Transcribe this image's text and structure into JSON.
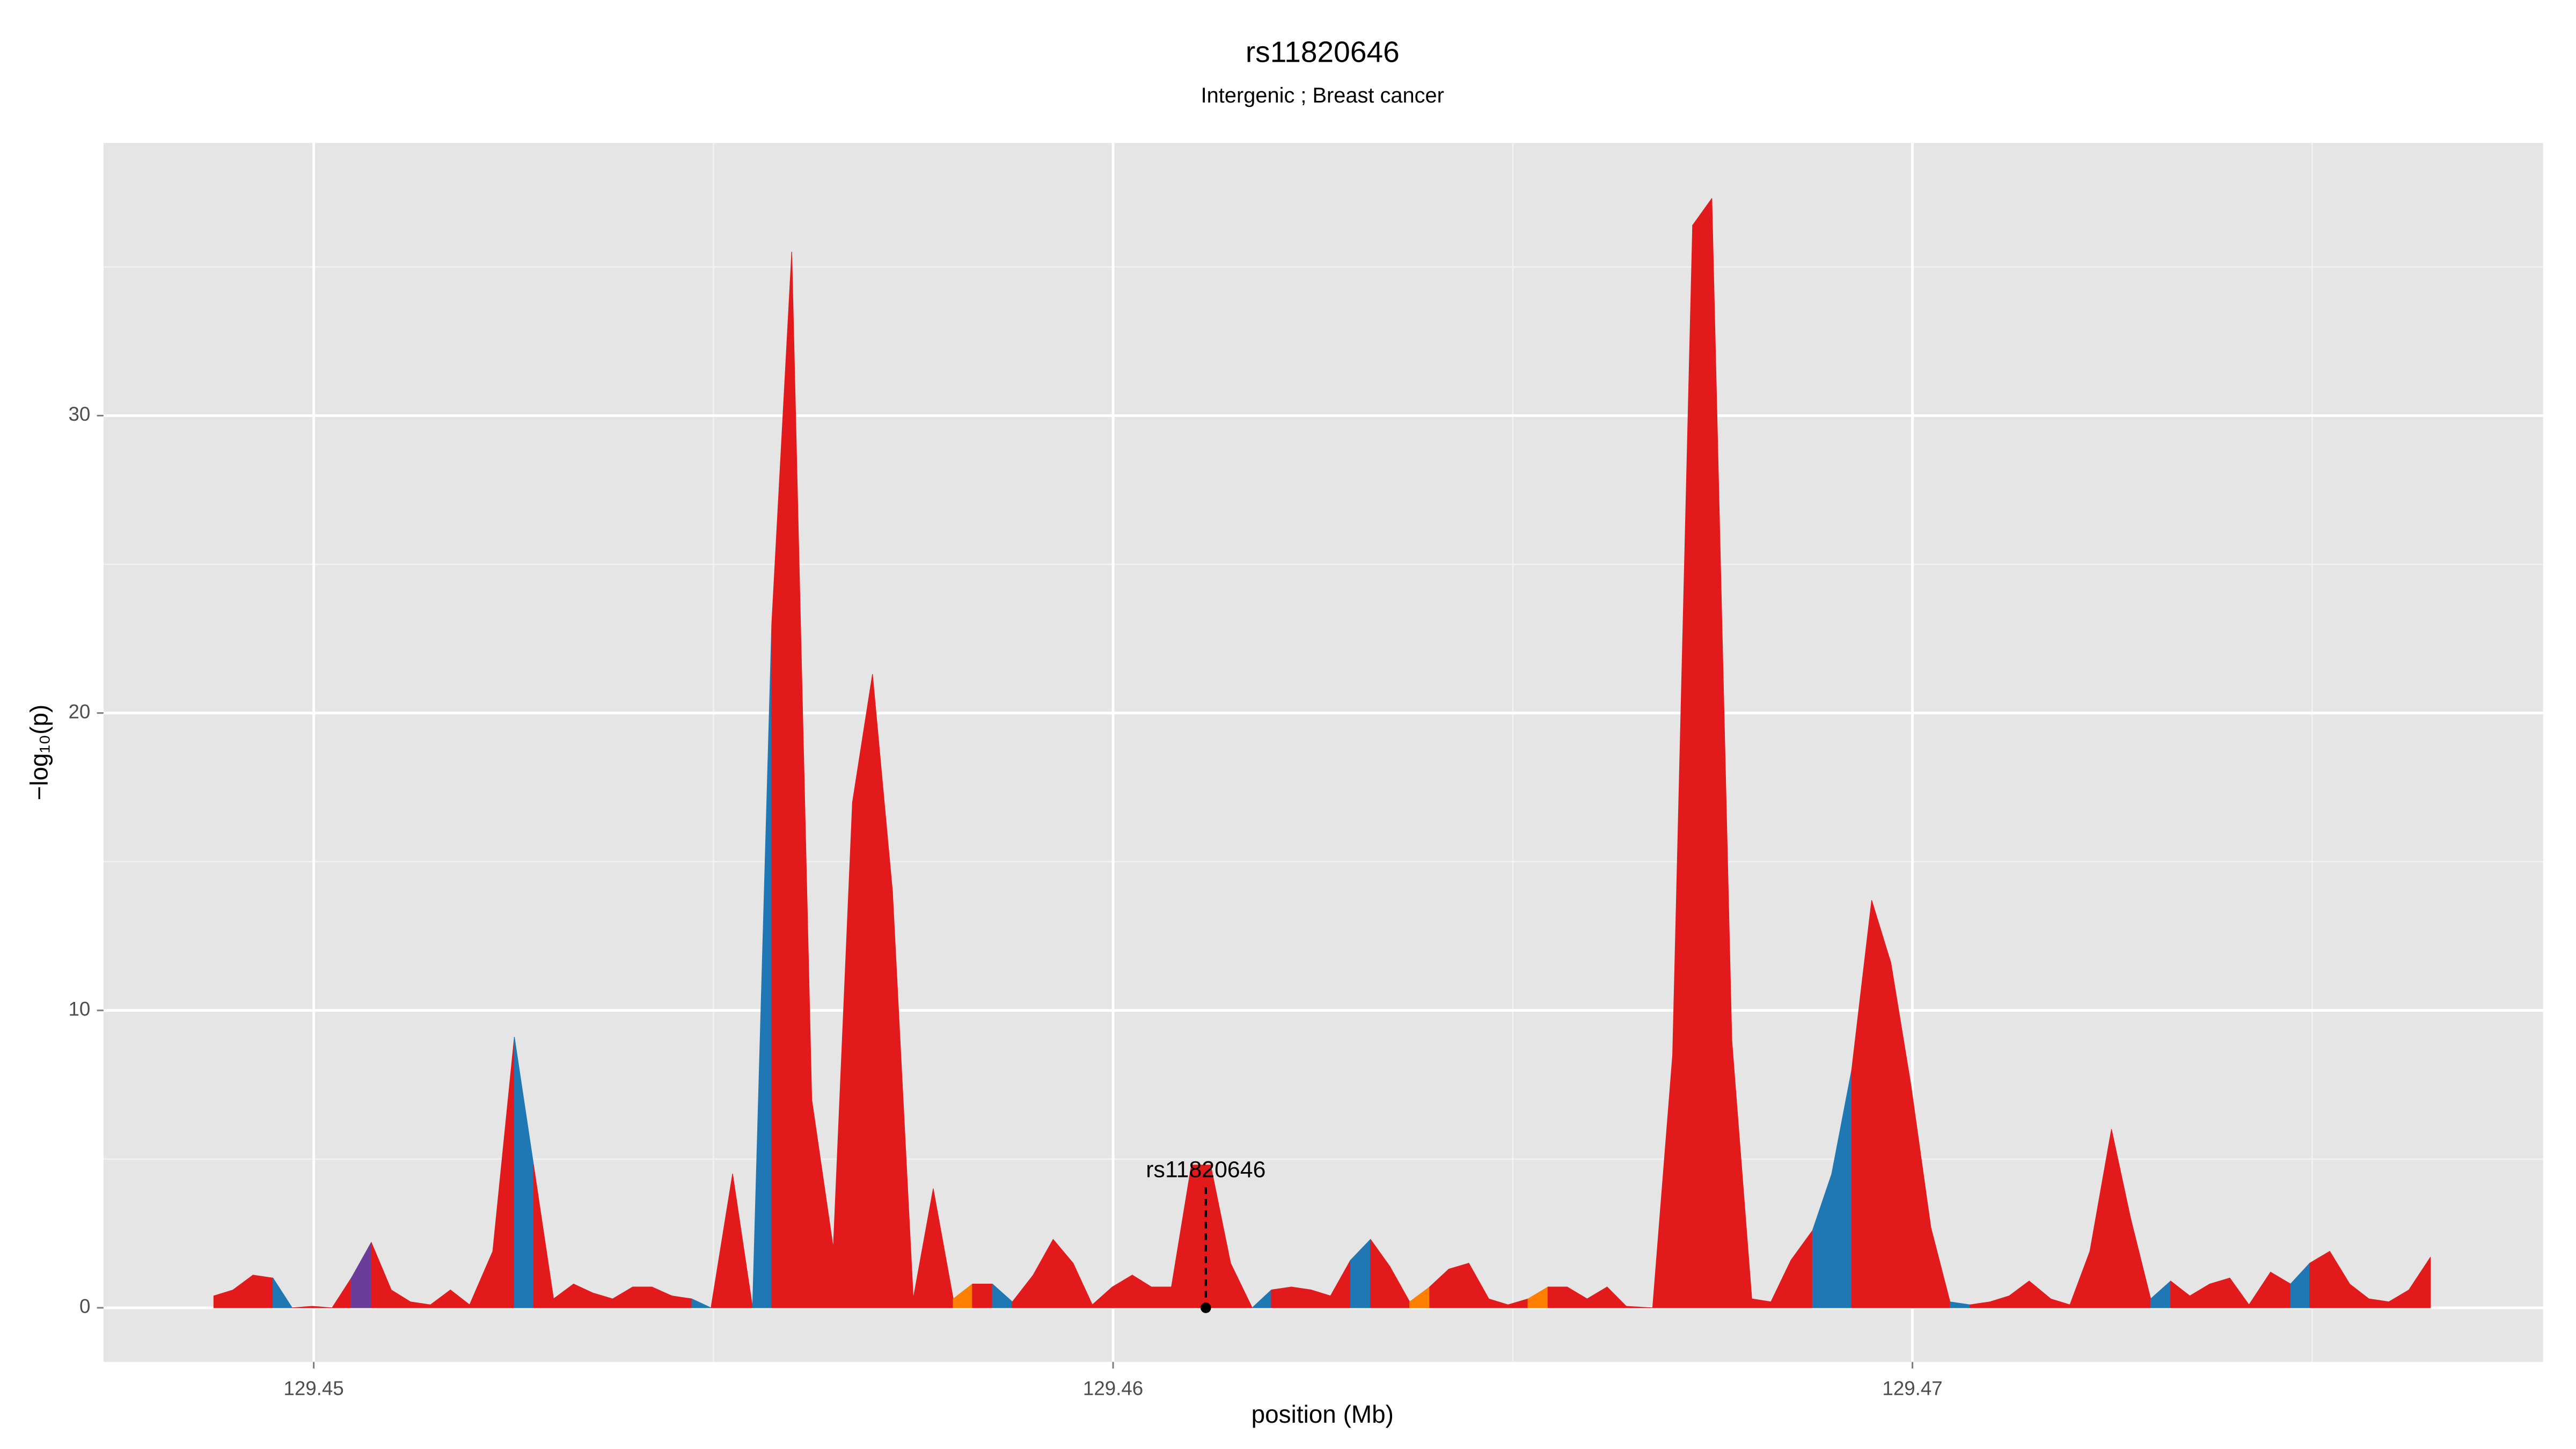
{
  "chart_data": {
    "type": "area",
    "title": "rs11820646",
    "subtitle": "Intergenic ; Breast cancer",
    "x_label": "position (Mb)",
    "y_label": "−log₁₀(p)",
    "x": [
      129.44875,
      129.44899,
      129.44924,
      129.44949,
      129.44973,
      129.44998,
      129.45023,
      129.45047,
      129.45072,
      129.45097,
      129.45121,
      129.45146,
      129.45171,
      129.45195,
      129.45224,
      129.45251,
      129.45275,
      129.453,
      129.45325,
      129.45349,
      129.45374,
      129.45399,
      129.45423,
      129.45448,
      129.45473,
      129.45497,
      129.45524,
      129.45549,
      129.45573,
      129.45598,
      129.45623,
      129.4565,
      129.45674,
      129.45699,
      129.45724,
      129.4575,
      129.45775,
      129.458,
      129.45824,
      129.45849,
      129.45874,
      129.459,
      129.45925,
      129.4595,
      129.45974,
      129.45999,
      129.46024,
      129.46048,
      129.46073,
      129.46098,
      129.46122,
      129.46147,
      129.46174,
      129.46198,
      129.46223,
      129.46248,
      129.46272,
      129.46297,
      129.46322,
      129.46346,
      129.46371,
      129.46396,
      129.4642,
      129.46445,
      129.4647,
      129.46494,
      129.46519,
      129.46544,
      129.46568,
      129.46593,
      129.46618,
      129.46642,
      129.46675,
      129.467,
      129.46725,
      129.46749,
      129.46774,
      129.46799,
      129.46823,
      129.46848,
      129.46875,
      129.46899,
      129.46924,
      129.46949,
      129.46973,
      129.46998,
      129.47023,
      129.47047,
      129.47072,
      129.47097,
      129.47121,
      129.47146,
      129.47173,
      129.47197,
      129.47222,
      129.47249,
      129.47273,
      129.47298,
      129.47323,
      129.47347,
      129.47372,
      129.47397,
      129.47421,
      129.47448,
      129.47473,
      129.47497,
      129.47522,
      129.47547,
      129.47571,
      129.47596,
      129.47621,
      129.47648
    ],
    "values": [
      0.4,
      0.6,
      1.1,
      1.0,
      0,
      0.05,
      0,
      1.0,
      2.2,
      0.6,
      0.2,
      0.1,
      0.6,
      0.1,
      1.9,
      9.1,
      4.8,
      0.3,
      0.8,
      0.5,
      0.3,
      0.7,
      0.7,
      0.4,
      0.3,
      0,
      4.5,
      0,
      23,
      35.5,
      7,
      2,
      17,
      21.3,
      14,
      0.3,
      4,
      0.3,
      0.8,
      0.8,
      0.2,
      1.1,
      2.3,
      1.5,
      0.1,
      0.7,
      1.1,
      0.7,
      0.7,
      4.8,
      4.8,
      1.5,
      0,
      0.6,
      0.7,
      0.6,
      0.4,
      1.6,
      2.3,
      1.4,
      0.2,
      0.7,
      1.3,
      1.5,
      0.3,
      0.1,
      0.3,
      0.7,
      0.7,
      0.3,
      0.7,
      0.05,
      0,
      8.5,
      36.4,
      37.3,
      9,
      0.3,
      0.2,
      1.6,
      2.6,
      4.5,
      8,
      13.7,
      11.6,
      7.5,
      2.7,
      0.2,
      0.1,
      0.2,
      0.4,
      0.9,
      0.3,
      0.1,
      1.9,
      6,
      3,
      0.3,
      0.9,
      0.4,
      0.8,
      1.0,
      0.1,
      1.2,
      0.8,
      1.5,
      1.9,
      0.8,
      0.3,
      0.2,
      0.6,
      1.7
    ],
    "segment_colors": [
      "#e31a1c",
      "#e31a1c",
      "#e31a1c",
      "#1f78b4",
      "#e31a1c",
      "#e31a1c",
      "#e31a1c",
      "#6a3d9a",
      "#e31a1c",
      "#e31a1c",
      "#e31a1c",
      "#e31a1c",
      "#e31a1c",
      "#e31a1c",
      "#e31a1c",
      "#1f78b4",
      "#e31a1c",
      "#e31a1c",
      "#e31a1c",
      "#e31a1c",
      "#e31a1c",
      "#e31a1c",
      "#e31a1c",
      "#e31a1c",
      "#1f78b4",
      "#e31a1c",
      "#e31a1c",
      "#1f78b4",
      "#e31a1c",
      "#e31a1c",
      "#e31a1c",
      "#e31a1c",
      "#e31a1c",
      "#e31a1c",
      "#e31a1c",
      "#e31a1c",
      "#e31a1c",
      "#ff7f00",
      "#e31a1c",
      "#1f78b4",
      "#e31a1c",
      "#e31a1c",
      "#e31a1c",
      "#e31a1c",
      "#e31a1c",
      "#e31a1c",
      "#e31a1c",
      "#e31a1c",
      "#e31a1c",
      "#e31a1c",
      "#e31a1c",
      "#e31a1c",
      "#1f78b4",
      "#e31a1c",
      "#e31a1c",
      "#e31a1c",
      "#e31a1c",
      "#1f78b4",
      "#e31a1c",
      "#e31a1c",
      "#ff7f00",
      "#e31a1c",
      "#e31a1c",
      "#e31a1c",
      "#e31a1c",
      "#e31a1c",
      "#ff7f00",
      "#e31a1c",
      "#e31a1c",
      "#e31a1c",
      "#e31a1c",
      "#e31a1c",
      "#e31a1c",
      "#e31a1c",
      "#e31a1c",
      "#e31a1c",
      "#e31a1c",
      "#e31a1c",
      "#e31a1c",
      "#e31a1c",
      "#1f78b4",
      "#1f78b4",
      "#e31a1c",
      "#e31a1c",
      "#e31a1c",
      "#e31a1c",
      "#e31a1c",
      "#1f78b4",
      "#e31a1c",
      "#e31a1c",
      "#e31a1c",
      "#e31a1c",
      "#e31a1c",
      "#e31a1c",
      "#e31a1c",
      "#e31a1c",
      "#e31a1c",
      "#1f78b4",
      "#e31a1c",
      "#e31a1c",
      "#e31a1c",
      "#e31a1c",
      "#e31a1c",
      "#e31a1c",
      "#1f78b4",
      "#e31a1c",
      "#e31a1c",
      "#e31a1c",
      "#e31a1c",
      "#e31a1c",
      "#e31a1c"
    ],
    "annotation": {
      "text": "rs11820646",
      "x": 129.46116,
      "y": 4.6
    },
    "xlim": [
      129.44737,
      129.47789
    ],
    "ylim": [
      -1.82,
      39.17
    ],
    "xticks": [
      129.45,
      129.46,
      129.47
    ],
    "yticks": [
      0,
      10,
      20,
      30
    ],
    "xminor": [
      129.455,
      129.465,
      129.475
    ],
    "yminor": [
      5,
      15,
      25,
      35
    ],
    "grid": true
  }
}
